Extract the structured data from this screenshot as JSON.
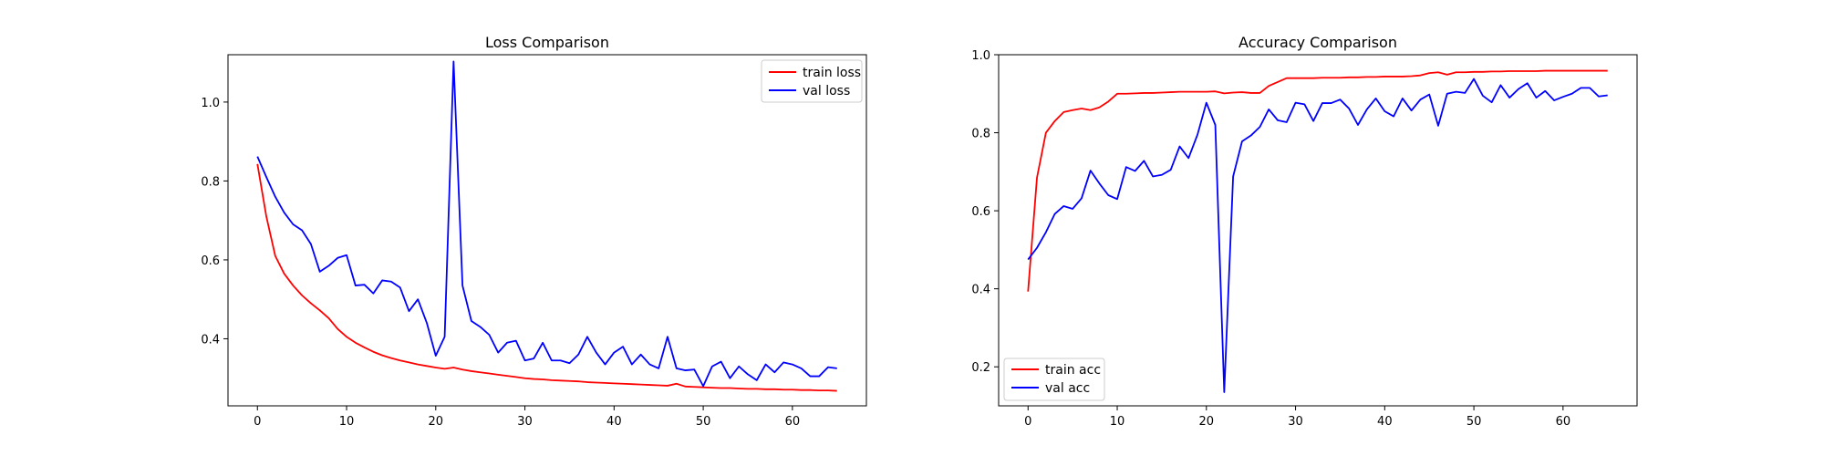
{
  "chart_data": [
    {
      "type": "line",
      "title": "Loss Comparison",
      "xlabel": "",
      "ylabel": "",
      "xlim": [
        -3.3,
        68.3
      ],
      "ylim": [
        0.23,
        1.12
      ],
      "xticks": [
        0,
        10,
        20,
        30,
        40,
        50,
        60
      ],
      "yticks": [
        0.4,
        0.6,
        0.8,
        1.0
      ],
      "ytick_labels": [
        "0.4",
        "0.6",
        "0.8",
        "1.0"
      ],
      "grid": false,
      "legend_position": "top-right",
      "series": [
        {
          "name": "train loss",
          "color": "#ff0000",
          "x": [
            0,
            1,
            2,
            3,
            4,
            5,
            6,
            7,
            8,
            9,
            10,
            11,
            12,
            13,
            14,
            15,
            16,
            17,
            18,
            19,
            20,
            21,
            22,
            23,
            24,
            25,
            26,
            27,
            28,
            29,
            30,
            31,
            32,
            33,
            34,
            35,
            36,
            37,
            38,
            39,
            40,
            41,
            42,
            43,
            44,
            45,
            46,
            47,
            48,
            49,
            50,
            51,
            52,
            53,
            54,
            55,
            56,
            57,
            58,
            59,
            60,
            61,
            62,
            63,
            64,
            65
          ],
          "y": [
            0.843,
            0.71,
            0.61,
            0.565,
            0.535,
            0.51,
            0.49,
            0.472,
            0.452,
            0.425,
            0.405,
            0.39,
            0.378,
            0.367,
            0.358,
            0.351,
            0.345,
            0.34,
            0.335,
            0.331,
            0.327,
            0.324,
            0.327,
            0.322,
            0.318,
            0.315,
            0.312,
            0.309,
            0.306,
            0.303,
            0.3,
            0.298,
            0.297,
            0.295,
            0.294,
            0.293,
            0.292,
            0.29,
            0.289,
            0.288,
            0.287,
            0.286,
            0.285,
            0.284,
            0.283,
            0.282,
            0.281,
            0.286,
            0.279,
            0.278,
            0.277,
            0.276,
            0.275,
            0.275,
            0.274,
            0.273,
            0.273,
            0.272,
            0.272,
            0.271,
            0.271,
            0.27,
            0.27,
            0.269,
            0.269,
            0.268
          ]
        },
        {
          "name": "val loss",
          "color": "#0000ff",
          "x": [
            0,
            1,
            2,
            3,
            4,
            5,
            6,
            7,
            8,
            9,
            10,
            11,
            12,
            13,
            14,
            15,
            16,
            17,
            18,
            19,
            20,
            21,
            22,
            23,
            24,
            25,
            26,
            27,
            28,
            29,
            30,
            31,
            32,
            33,
            34,
            35,
            36,
            37,
            38,
            39,
            40,
            41,
            42,
            43,
            44,
            45,
            46,
            47,
            48,
            49,
            50,
            51,
            52,
            53,
            54,
            55,
            56,
            57,
            58,
            59,
            60,
            61,
            62,
            63,
            64,
            65
          ],
          "y": [
            0.862,
            0.81,
            0.76,
            0.72,
            0.69,
            0.675,
            0.64,
            0.57,
            0.585,
            0.605,
            0.612,
            0.535,
            0.537,
            0.515,
            0.548,
            0.545,
            0.53,
            0.47,
            0.5,
            0.44,
            0.357,
            0.405,
            1.103,
            0.535,
            0.445,
            0.43,
            0.41,
            0.365,
            0.39,
            0.395,
            0.345,
            0.35,
            0.39,
            0.345,
            0.345,
            0.338,
            0.36,
            0.405,
            0.365,
            0.335,
            0.365,
            0.38,
            0.335,
            0.36,
            0.335,
            0.325,
            0.405,
            0.325,
            0.32,
            0.322,
            0.28,
            0.33,
            0.342,
            0.3,
            0.33,
            0.31,
            0.295,
            0.335,
            0.315,
            0.34,
            0.335,
            0.325,
            0.305,
            0.305,
            0.328,
            0.325
          ]
        }
      ]
    },
    {
      "type": "line",
      "title": "Accuracy Comparison",
      "xlabel": "",
      "ylabel": "",
      "xlim": [
        -3.3,
        68.3
      ],
      "ylim": [
        0.1,
        1.0
      ],
      "xticks": [
        0,
        10,
        20,
        30,
        40,
        50,
        60
      ],
      "yticks": [
        0.2,
        0.4,
        0.6,
        0.8,
        1.0
      ],
      "ytick_labels": [
        "0.2",
        "0.4",
        "0.6",
        "0.8",
        "1.0"
      ],
      "grid": false,
      "legend_position": "bottom-left",
      "series": [
        {
          "name": "train acc",
          "color": "#ff0000",
          "x": [
            0,
            1,
            2,
            3,
            4,
            5,
            6,
            7,
            8,
            9,
            10,
            11,
            12,
            13,
            14,
            15,
            16,
            17,
            18,
            19,
            20,
            21,
            22,
            23,
            24,
            25,
            26,
            27,
            28,
            29,
            30,
            31,
            32,
            33,
            34,
            35,
            36,
            37,
            38,
            39,
            40,
            41,
            42,
            43,
            44,
            45,
            46,
            47,
            48,
            49,
            50,
            51,
            52,
            53,
            54,
            55,
            56,
            57,
            58,
            59,
            60,
            61,
            62,
            63,
            64,
            65
          ],
          "y": [
            0.393,
            0.685,
            0.8,
            0.83,
            0.853,
            0.858,
            0.862,
            0.858,
            0.865,
            0.88,
            0.9,
            0.9,
            0.901,
            0.902,
            0.902,
            0.903,
            0.904,
            0.905,
            0.905,
            0.905,
            0.905,
            0.906,
            0.901,
            0.903,
            0.904,
            0.902,
            0.902,
            0.92,
            0.93,
            0.94,
            0.94,
            0.94,
            0.94,
            0.941,
            0.941,
            0.941,
            0.942,
            0.942,
            0.943,
            0.943,
            0.944,
            0.944,
            0.944,
            0.945,
            0.947,
            0.953,
            0.955,
            0.949,
            0.955,
            0.955,
            0.956,
            0.956,
            0.957,
            0.957,
            0.958,
            0.958,
            0.958,
            0.958,
            0.959,
            0.959,
            0.959,
            0.959,
            0.959,
            0.959,
            0.959,
            0.959
          ]
        },
        {
          "name": "val acc",
          "color": "#0000ff",
          "x": [
            0,
            1,
            2,
            3,
            4,
            5,
            6,
            7,
            8,
            9,
            10,
            11,
            12,
            13,
            14,
            15,
            16,
            17,
            18,
            19,
            20,
            21,
            22,
            23,
            24,
            25,
            26,
            27,
            28,
            29,
            30,
            31,
            32,
            33,
            34,
            35,
            36,
            37,
            38,
            39,
            40,
            41,
            42,
            43,
            44,
            45,
            46,
            47,
            48,
            49,
            50,
            51,
            52,
            53,
            54,
            55,
            56,
            57,
            58,
            59,
            60,
            61,
            62,
            63,
            64,
            65
          ],
          "y": [
            0.475,
            0.505,
            0.545,
            0.592,
            0.612,
            0.605,
            0.632,
            0.703,
            0.67,
            0.64,
            0.63,
            0.712,
            0.702,
            0.728,
            0.688,
            0.692,
            0.705,
            0.765,
            0.735,
            0.795,
            0.877,
            0.82,
            0.135,
            0.688,
            0.778,
            0.793,
            0.815,
            0.86,
            0.832,
            0.827,
            0.877,
            0.873,
            0.83,
            0.876,
            0.876,
            0.885,
            0.862,
            0.82,
            0.86,
            0.888,
            0.855,
            0.842,
            0.888,
            0.857,
            0.885,
            0.898,
            0.818,
            0.9,
            0.905,
            0.902,
            0.938,
            0.895,
            0.878,
            0.922,
            0.89,
            0.912,
            0.927,
            0.89,
            0.907,
            0.883,
            0.892,
            0.9,
            0.915,
            0.915,
            0.893,
            0.896
          ]
        }
      ]
    }
  ]
}
